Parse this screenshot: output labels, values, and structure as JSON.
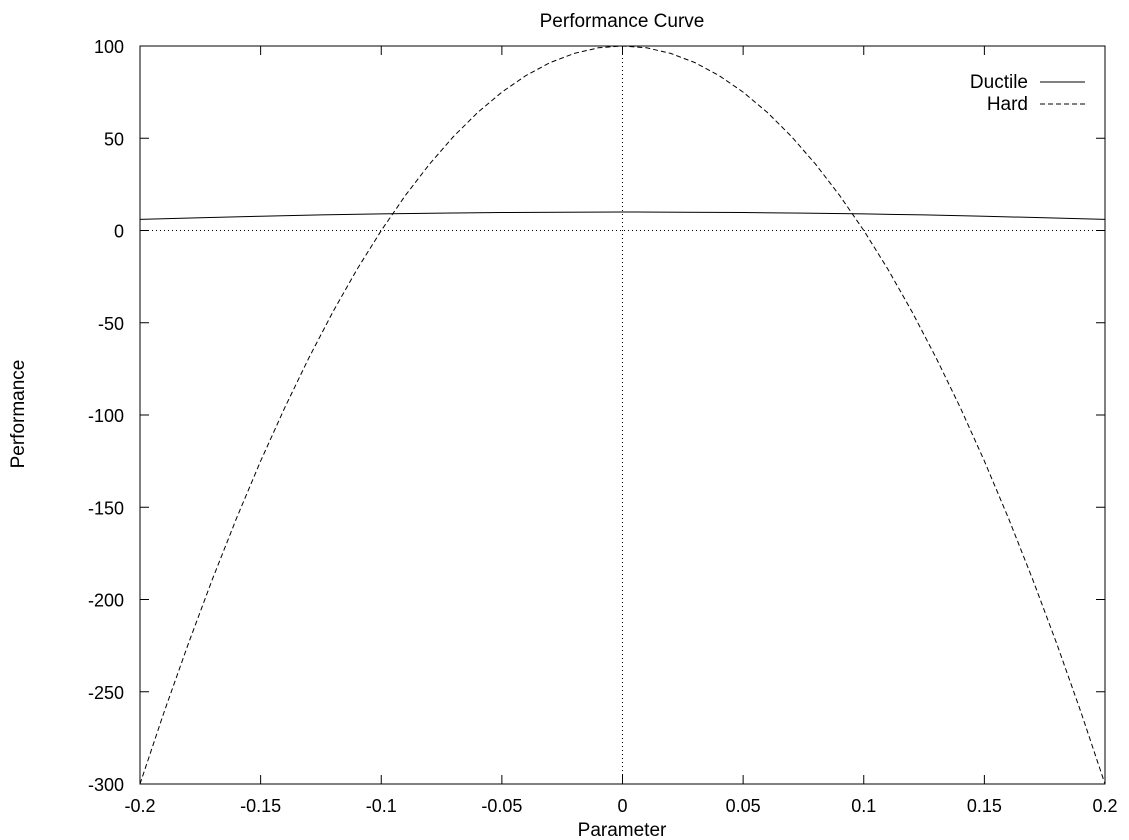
{
  "chart_data": {
    "type": "line",
    "title": "Performance Curve",
    "xlabel": "Parameter",
    "ylabel": "Performance",
    "xlim": [
      -0.2,
      0.2
    ],
    "ylim": [
      -300,
      100
    ],
    "xticks": [
      -0.2,
      -0.15,
      -0.1,
      -0.05,
      0,
      0.05,
      0.1,
      0.15,
      0.2
    ],
    "xtick_labels": [
      "-0.2",
      "-0.15",
      "-0.1",
      "-0.05",
      "0",
      "0.05",
      "0.1",
      "0.15",
      "0.2"
    ],
    "yticks": [
      -300,
      -250,
      -200,
      -150,
      -100,
      -50,
      0,
      50,
      100
    ],
    "ytick_labels": [
      "-300",
      "-250",
      "-200",
      "-150",
      "-100",
      "-50",
      "0",
      "50",
      "100"
    ],
    "zero_axes": true,
    "grid": false,
    "legend_position": "top-right",
    "series": [
      {
        "name": "Ductile",
        "style": "solid",
        "color": "#000000",
        "x": [
          -0.2,
          -0.175,
          -0.15,
          -0.125,
          -0.1,
          -0.075,
          -0.05,
          -0.025,
          0,
          0.025,
          0.05,
          0.075,
          0.1,
          0.125,
          0.15,
          0.175,
          0.2
        ],
        "y": [
          6,
          6.9,
          7.75,
          8.44,
          9,
          9.44,
          9.75,
          9.94,
          10,
          9.94,
          9.75,
          9.44,
          9,
          8.44,
          7.75,
          6.9,
          6
        ]
      },
      {
        "name": "Hard",
        "style": "dashed",
        "color": "#000000",
        "x": [
          -0.2,
          -0.19,
          -0.18,
          -0.17,
          -0.16,
          -0.15,
          -0.14,
          -0.13,
          -0.12,
          -0.11,
          -0.1,
          -0.09,
          -0.08,
          -0.07,
          -0.06,
          -0.05,
          -0.04,
          -0.03,
          -0.02,
          -0.01,
          0,
          0.01,
          0.02,
          0.03,
          0.04,
          0.05,
          0.06,
          0.07,
          0.08,
          0.09,
          0.1,
          0.11,
          0.12,
          0.13,
          0.14,
          0.15,
          0.16,
          0.17,
          0.18,
          0.19,
          0.2
        ],
        "y": [
          -300,
          -261,
          -224,
          -189,
          -156,
          -125,
          -96,
          -69,
          -44,
          -21,
          0,
          19,
          36,
          51,
          64,
          75,
          84,
          91,
          96,
          99,
          100,
          99,
          96,
          91,
          84,
          75,
          64,
          51,
          36,
          19,
          0,
          -21,
          -44,
          -69,
          -96,
          -125,
          -156,
          -189,
          -224,
          -261,
          -300
        ]
      }
    ]
  }
}
